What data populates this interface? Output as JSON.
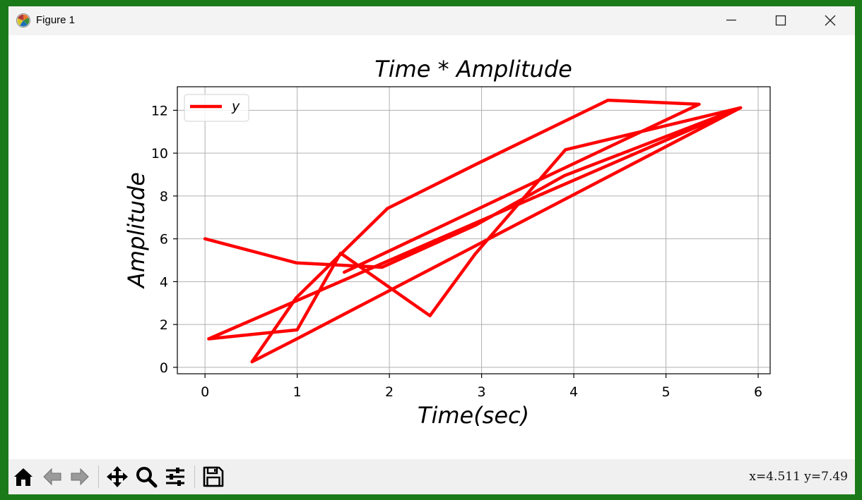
{
  "window": {
    "title": "Figure 1",
    "controls": [
      "minimize-icon",
      "maximize-icon",
      "close-icon"
    ]
  },
  "toolbar": {
    "buttons": [
      "home-icon",
      "back-arrow-icon",
      "forward-arrow-icon",
      "pan-icon",
      "zoom-icon",
      "configure-subplots-icon",
      "save-icon"
    ],
    "coords_text": "x=4.511 y=7.49"
  },
  "chart_data": {
    "type": "line",
    "title": "Time * Amplitude",
    "xlabel": "Time(sec)",
    "ylabel": "Amplitude",
    "xlim": [
      -0.3,
      6.13
    ],
    "ylim": [
      -0.3,
      13.1
    ],
    "xticks": [
      0,
      1,
      2,
      3,
      4,
      5,
      6
    ],
    "yticks": [
      0,
      2,
      4,
      6,
      8,
      10,
      12
    ],
    "grid": true,
    "legend": "upper-left",
    "line_color": "#ff0000",
    "series": [
      {
        "name": "y",
        "x": [
          0,
          0.99,
          1.92,
          2.94,
          3.9,
          5.81,
          0.04,
          1.0,
          1.47,
          2.44,
          2.93,
          3.91,
          5.81,
          1.0,
          0.51,
          0.99,
          1.98,
          2.95,
          4.37,
          5.36,
          1.51
        ],
        "y": [
          6.0,
          4.88,
          4.67,
          6.65,
          8.95,
          12.12,
          1.33,
          1.75,
          5.33,
          2.41,
          5.29,
          10.16,
          12.12,
          1.34,
          0.26,
          3.25,
          7.42,
          9.5,
          12.47,
          12.28,
          4.44
        ]
      }
    ]
  }
}
